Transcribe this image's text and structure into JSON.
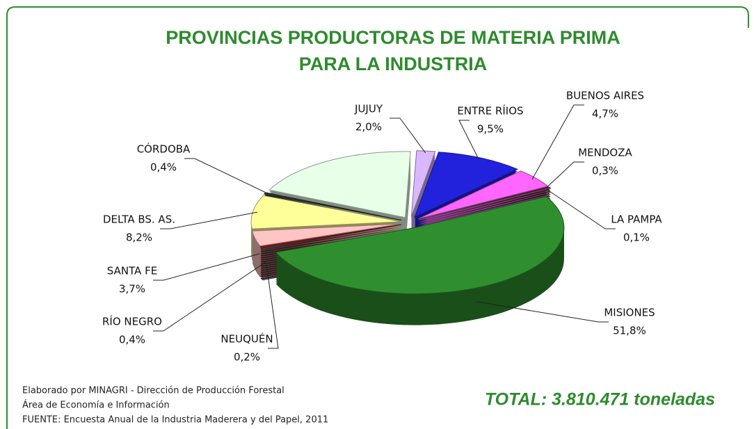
{
  "chart_data": {
    "type": "pie",
    "title": [
      "PROVINCIAS PRODUCTORAS DE MATERIA PRIMA",
      "PARA LA INDUSTRIA"
    ],
    "categories": [
      "JUJUY",
      "ENTRE RÍIOS",
      "BUENOS AIRES",
      "MENDOZA",
      "LA PAMPA",
      "MISIONES",
      "NEUQUÉN",
      "RÍO NEGRO",
      "SANTA FE",
      "DELTA BS. AS.",
      "CÓRDOBA",
      null
    ],
    "values": [
      2.0,
      9.5,
      4.7,
      0.3,
      0.1,
      51.8,
      0.2,
      0.4,
      3.7,
      8.2,
      0.4,
      18.7
    ],
    "value_labels": [
      "2,0%",
      "9,5%",
      "4,7%",
      "0,3%",
      "0,1%",
      "51,8%",
      "0,2%",
      "0,4%",
      "3,7%",
      "8,2%",
      "0,4%",
      null
    ],
    "colors": [
      "#d9b8ff",
      "#2222dd",
      "#ff66ff",
      "#6a1838",
      "#8a8a8a",
      "#2f8f2f",
      "#1a9090",
      "#a01010",
      "#ffc4c4",
      "#ffff99",
      "#333333",
      "#e8ffe8"
    ],
    "notes": [
      "Elaborado por MINAGRI - Dirección de Producción Forestal",
      "Área de Economía e Información",
      "FUENTE: Encuesta Anual de la Industria Maderera y del Papel, 2011"
    ],
    "total": "TOTAL: 3.810.471 toneladas"
  }
}
